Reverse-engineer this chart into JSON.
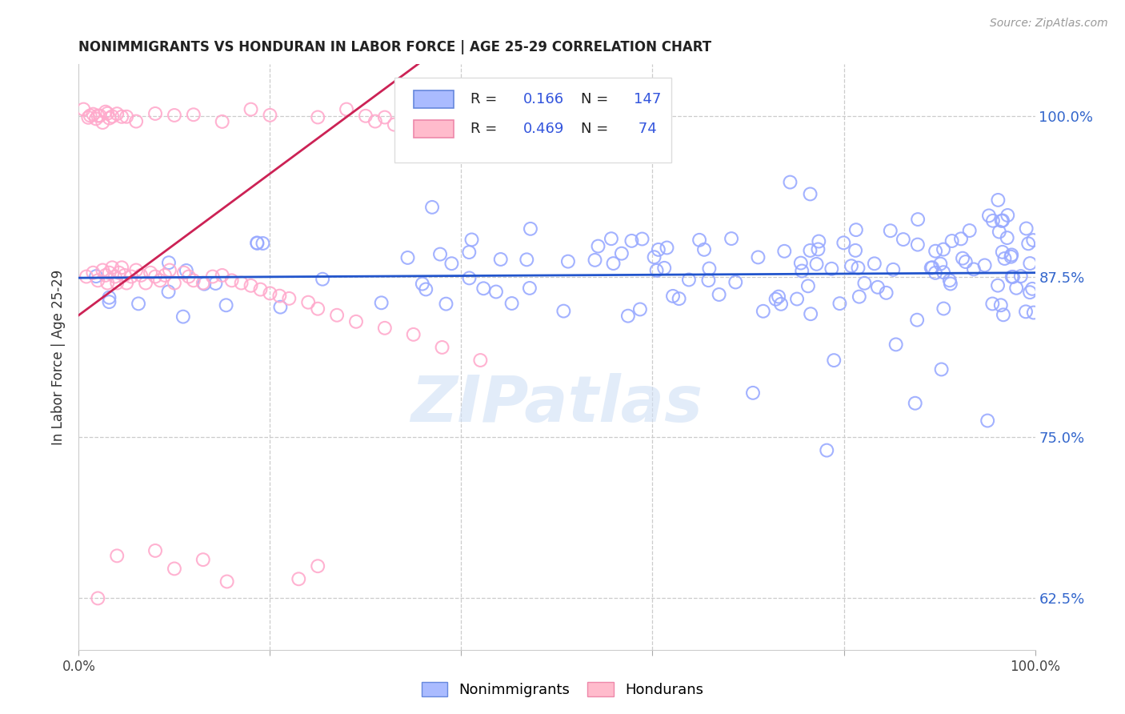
{
  "title": "NONIMMIGRANTS VS HONDURAN IN LABOR FORCE | AGE 25-29 CORRELATION CHART",
  "source": "Source: ZipAtlas.com",
  "ylabel": "In Labor Force | Age 25-29",
  "xlim": [
    0.0,
    1.0
  ],
  "ylim": [
    0.585,
    1.04
  ],
  "yticks": [
    0.625,
    0.75,
    0.875,
    1.0
  ],
  "ytick_labels": [
    "62.5%",
    "75.0%",
    "87.5%",
    "100.0%"
  ],
  "xticks": [
    0.0,
    0.2,
    0.4,
    0.6,
    0.8,
    1.0
  ],
  "xtick_labels": [
    "0.0%",
    "",
    "",
    "",
    "",
    "100.0%"
  ],
  "blue_color": "#99aaff",
  "pink_color": "#ffaacc",
  "trend_blue": "#2255cc",
  "trend_pink": "#cc2255",
  "legend_blue_R": "0.166",
  "legend_blue_N": "147",
  "legend_pink_R": "0.469",
  "legend_pink_N": "74",
  "watermark": "ZIPatlas",
  "blue_seed": 42,
  "pink_seed": 7
}
